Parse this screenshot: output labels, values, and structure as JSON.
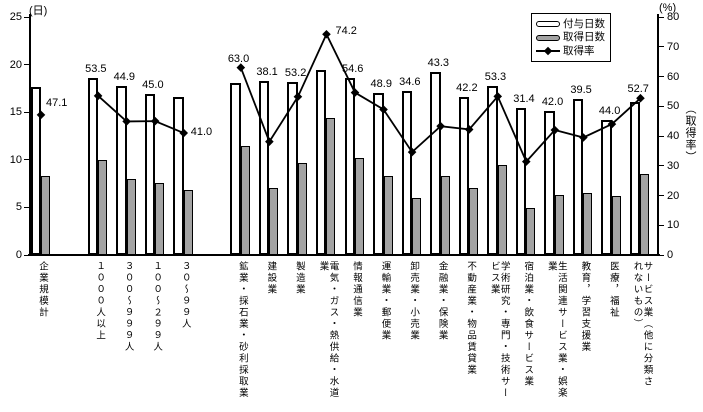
{
  "chart_data": {
    "type": "bar",
    "subtype": "combo-bar-line",
    "left_axis": {
      "unit_label": "(日)",
      "min": 0,
      "max": 25,
      "step": 5
    },
    "right_axis": {
      "unit_label": "(%)",
      "min": 0,
      "max": 80,
      "step": 10,
      "axis_title": "（取得率）"
    },
    "legend": {
      "position": "top-right",
      "items": [
        {
          "label": "付与日数",
          "swatch": "white-bar"
        },
        {
          "label": "取得日数",
          "swatch": "gray-bar"
        },
        {
          "label": "取得率",
          "swatch": "diamond-line"
        }
      ]
    },
    "categories": [
      "企業規模計",
      "１０００人以上",
      "３００～９９９人",
      "１００～２９９人",
      "３０～９９人",
      "鉱業・採石業・砂利採取業",
      "建設業",
      "製造業",
      "電気・ガス・熱供給・水道\n業",
      "情報通信業",
      "運輸業・郵便業",
      "卸売業・小売業",
      "金融業・保険業",
      "不動産業・物品賃貸業",
      "学術研究・専門・技術サー\nビス業",
      "宿泊業・飲食サービス業",
      "生活関連サービス業・娯楽\n業",
      "教育，学習支援業",
      "医療，福祉",
      "サービス業（他に分類さ\nれないもの）"
    ],
    "series": [
      {
        "name": "付与日数",
        "type": "bar",
        "axis": "left",
        "color": "#ffffff",
        "values": [
          17.6,
          18.6,
          17.8,
          16.9,
          16.6,
          18.1,
          18.3,
          18.2,
          19.4,
          18.6,
          17.0,
          17.2,
          19.2,
          16.6,
          17.8,
          15.4,
          15.1,
          16.4,
          14.2,
          16.1
        ]
      },
      {
        "name": "取得日数",
        "type": "bar",
        "axis": "left",
        "color": "#a3a3a3",
        "values": [
          8.3,
          10.0,
          8.0,
          7.6,
          6.8,
          11.4,
          7.0,
          9.7,
          14.4,
          10.2,
          8.3,
          6.0,
          8.3,
          7.0,
          9.5,
          4.9,
          6.3,
          6.5,
          6.2,
          8.5
        ]
      },
      {
        "name": "取得率",
        "type": "line",
        "axis": "right",
        "color": "#000000",
        "marker": "diamond",
        "data_labels": true,
        "values": [
          47.1,
          53.5,
          44.9,
          45.0,
          41.0,
          63.0,
          38.1,
          53.2,
          74.2,
          54.6,
          48.9,
          34.6,
          43.3,
          42.2,
          53.3,
          31.4,
          42.0,
          39.5,
          44.0,
          52.7
        ],
        "segments": [
          [
            0,
            0
          ],
          [
            1,
            4
          ],
          [
            5,
            19
          ]
        ]
      }
    ],
    "layout_hints": {
      "grid": false,
      "group_gap_after_categories": [
        0,
        4
      ]
    },
    "colors": {
      "bar_granted": "#ffffff",
      "bar_taken": "#a3a3a3",
      "line": "#000000",
      "text": "#000000"
    }
  }
}
